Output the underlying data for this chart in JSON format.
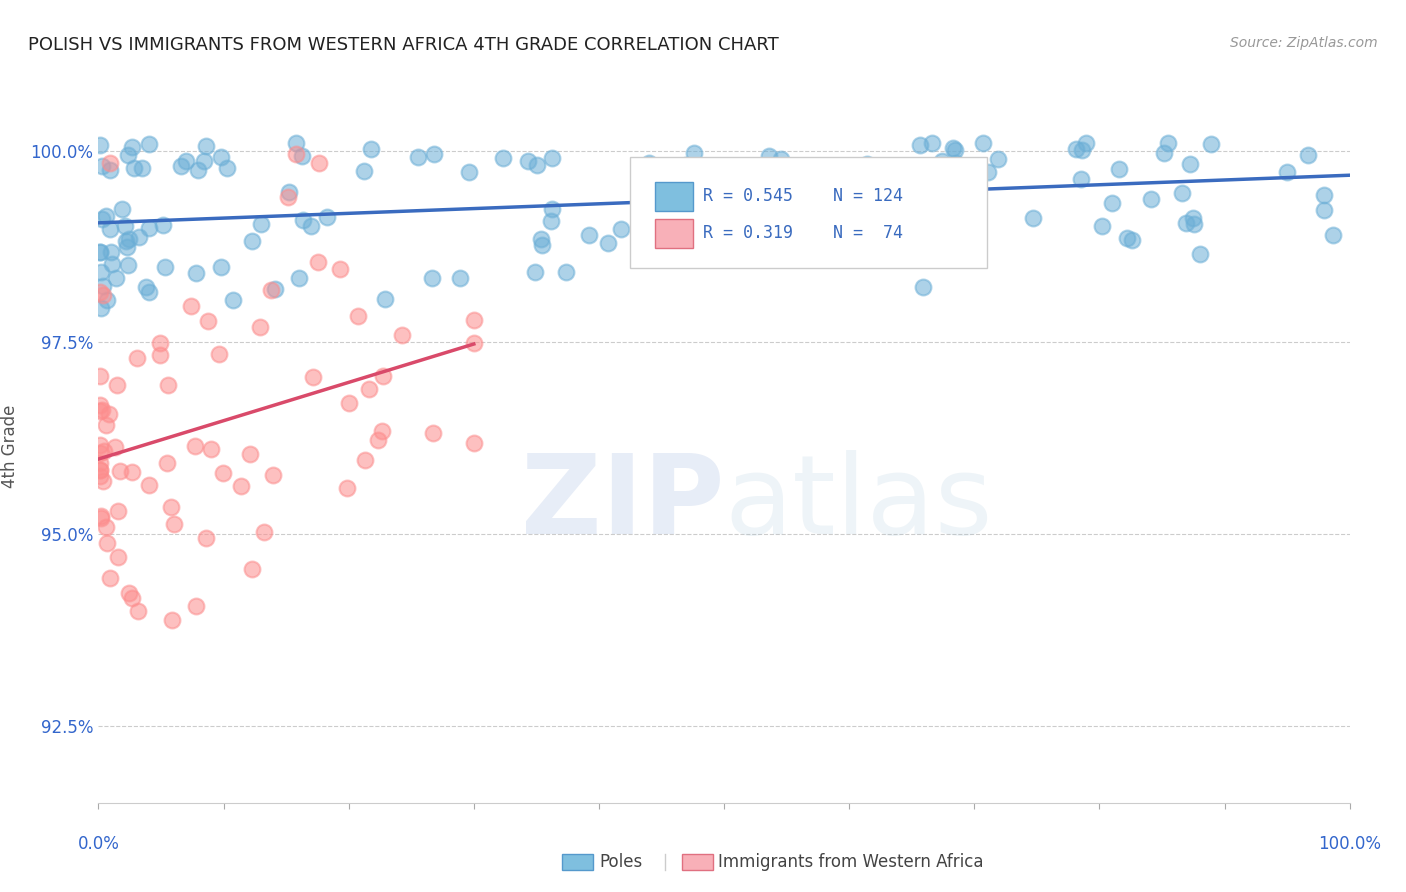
{
  "title": "POLISH VS IMMIGRANTS FROM WESTERN AFRICA 4TH GRADE CORRELATION CHART",
  "source": "Source: ZipAtlas.com",
  "ylabel": "4th Grade",
  "yticks": [
    92.5,
    95.0,
    97.5,
    100.0
  ],
  "ytick_labels": [
    "92.5%",
    "95.0%",
    "97.5%",
    "100.0%"
  ],
  "xlim": [
    0.0,
    1.0
  ],
  "ylim": [
    91.5,
    100.8
  ],
  "legend_R_blue": "R = 0.545",
  "legend_N_blue": "N = 124",
  "legend_R_pink": "R = 0.319",
  "legend_N_pink": "N =  74",
  "blue_color": "#6baed6",
  "pink_color": "#fc8d8d",
  "line_blue": "#3a6bbf",
  "line_pink": "#d94a6a",
  "title_color": "#222222",
  "axis_label_color": "#3366cc",
  "tick_color": "#aaaaaa"
}
